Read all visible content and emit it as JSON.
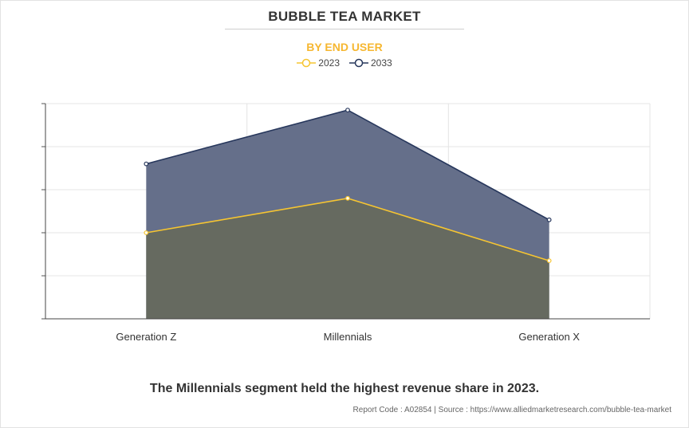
{
  "header": {
    "title": "BUBBLE TEA MARKET",
    "subtitle": "BY END USER"
  },
  "chart_data": {
    "type": "area",
    "title": "BUBBLE TEA MARKET",
    "subtitle": "BY END USER",
    "categories": [
      "Generation Z",
      "Millennials",
      "Generation X"
    ],
    "series": [
      {
        "name": "2023",
        "values": [
          2.0,
          2.8,
          1.35
        ],
        "color": "#f6c531",
        "fill": "#666a60"
      },
      {
        "name": "2033",
        "values": [
          3.6,
          4.85,
          2.3
        ],
        "color": "#27375c",
        "fill": "#656f8a"
      }
    ],
    "ylim": [
      0,
      5
    ],
    "yticks": [
      0,
      1,
      2,
      3,
      4,
      5
    ],
    "xlabel": "",
    "ylabel": "",
    "grid": true,
    "legend": "top-center",
    "y_tick_labels_visible": false
  },
  "footer": {
    "caption": "The Millennials segment held the highest revenue share in 2023.",
    "source": "Report Code : A02854  |  Source : https://www.alliedmarketresearch.com/bubble-tea-market"
  }
}
